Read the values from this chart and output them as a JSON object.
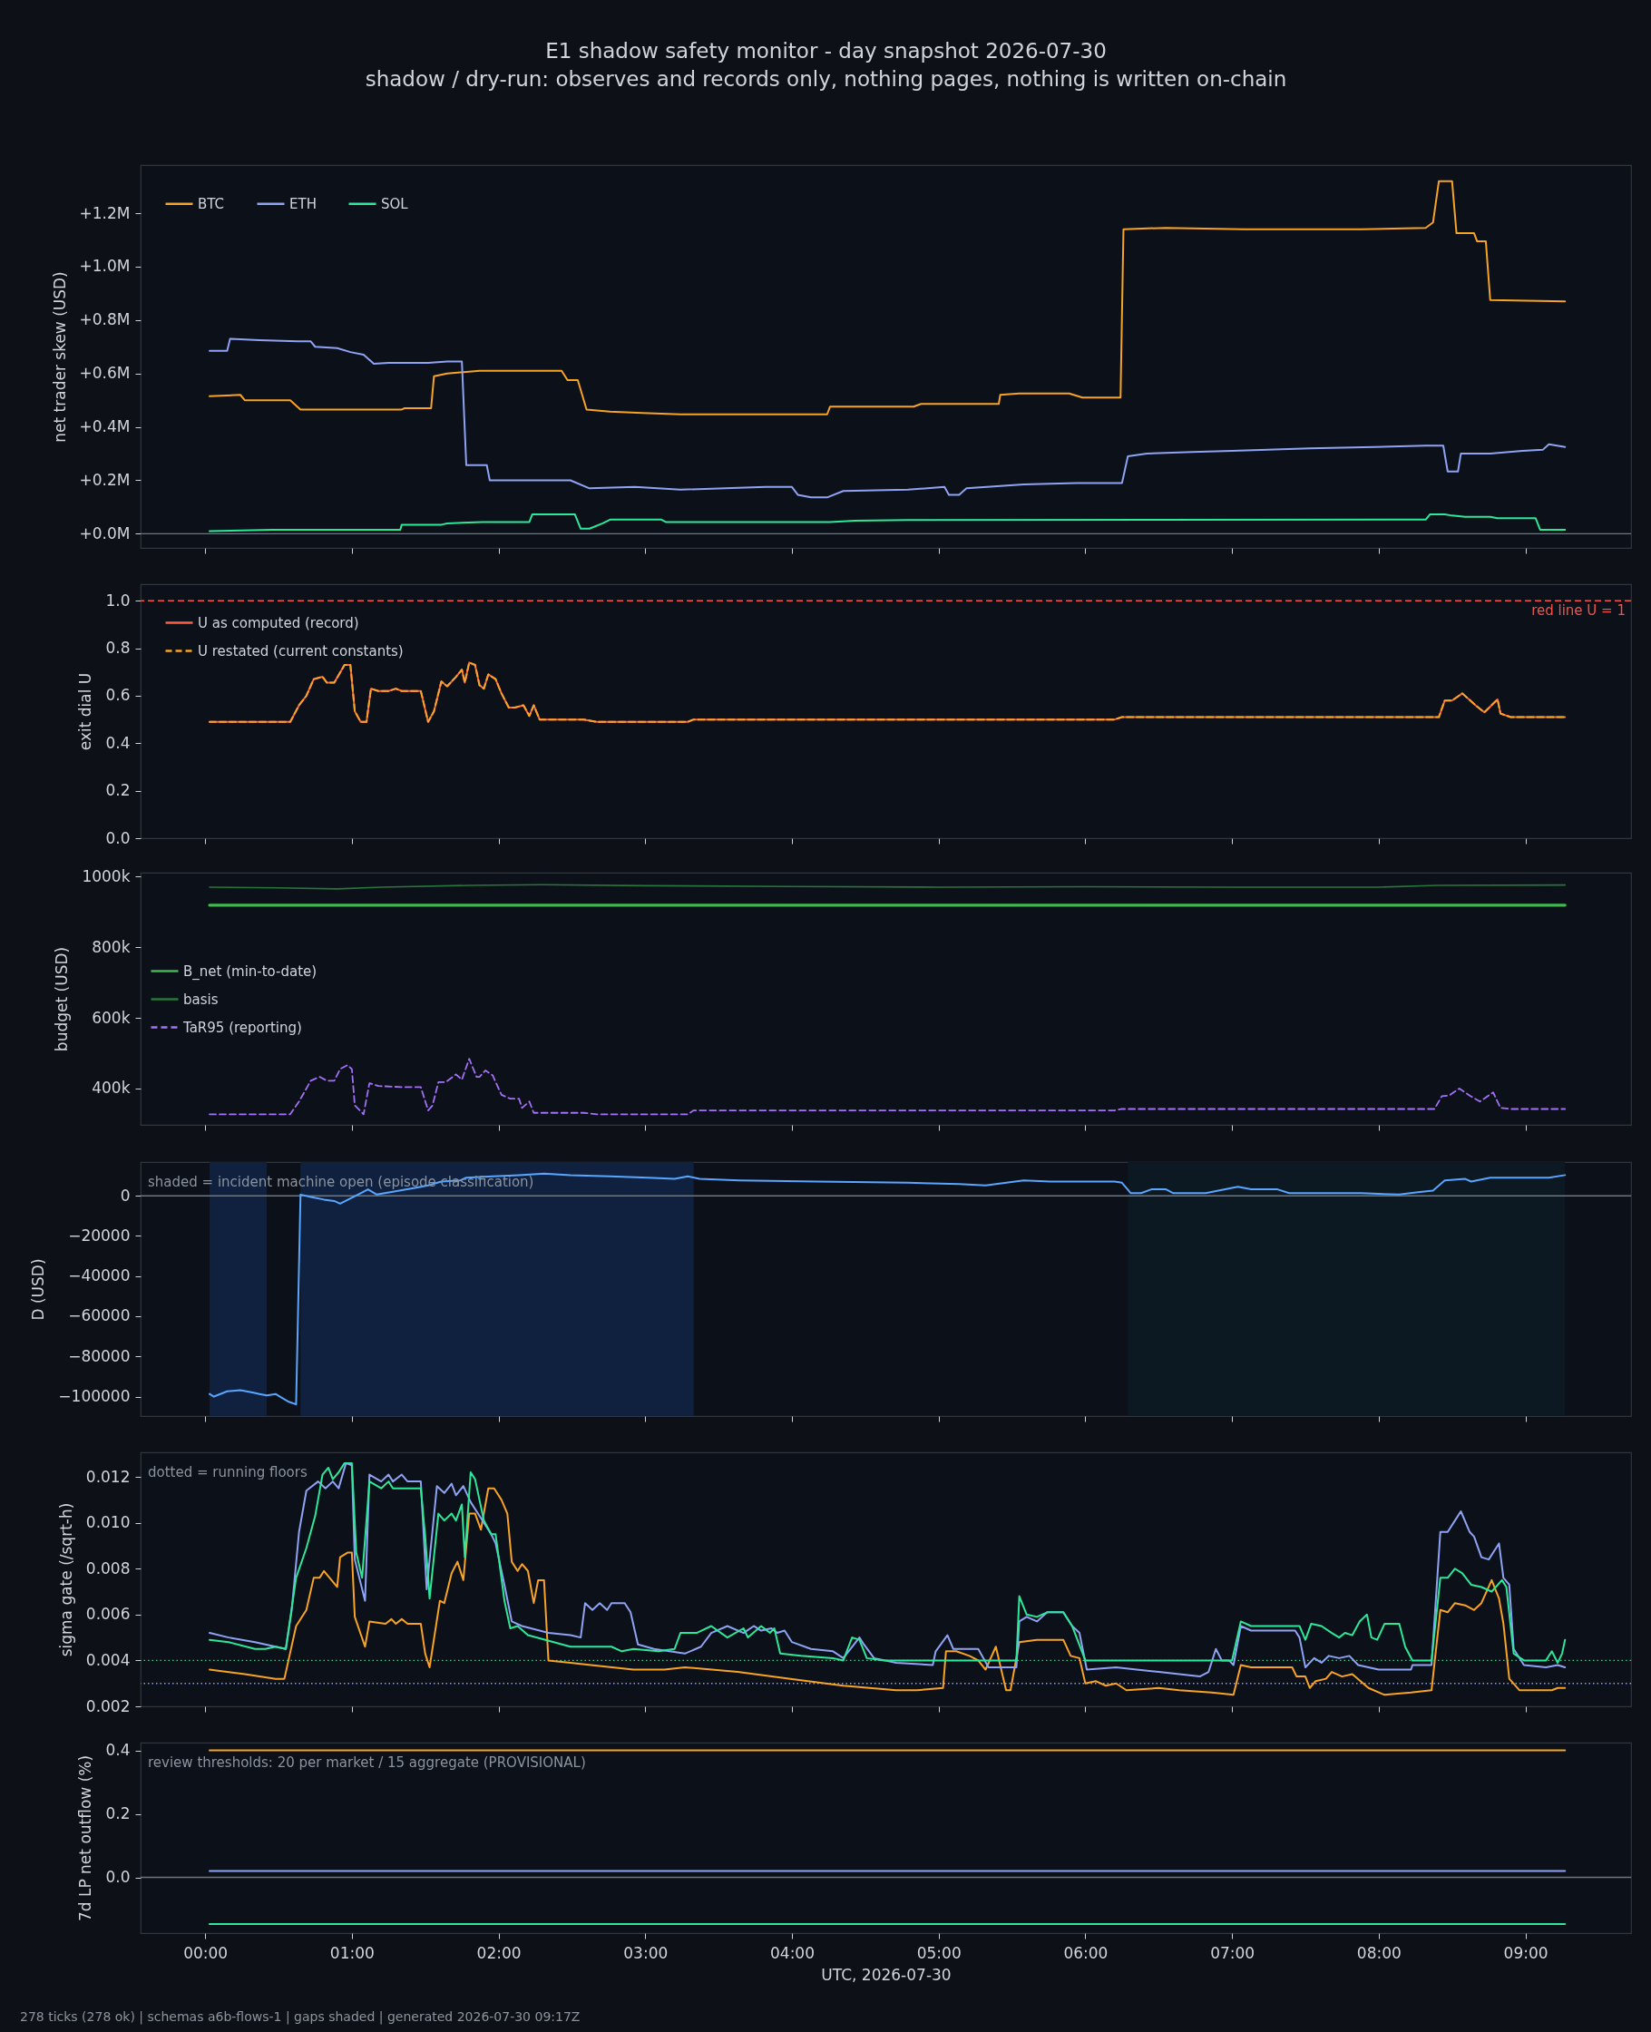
{
  "chart_data": [
    {
      "type": "line",
      "title": "E1 shadow safety monitor - day snapshot 2026-07-30",
      "subtitle": "shadow / dry-run: observes and records only, nothing pages, nothing is written on-chain",
      "ylabel": "net trader skew (USD)",
      "xlim": [
        -0.44,
        9.72
      ],
      "xticks": [
        {
          "value": 0,
          "label": null
        },
        {
          "value": 1,
          "label": null
        },
        {
          "value": 2,
          "label": null
        },
        {
          "value": 3,
          "label": null
        },
        {
          "value": 4,
          "label": null
        },
        {
          "value": 5,
          "label": null
        },
        {
          "value": 6,
          "label": null
        },
        {
          "value": 7,
          "label": null
        },
        {
          "value": 8,
          "label": null
        },
        {
          "value": 9,
          "label": null
        }
      ],
      "ylim": [
        -53000,
        1380000
      ],
      "yticks": [
        {
          "value": 0,
          "label": "+0.0M"
        },
        {
          "value": 200000,
          "label": "+0.2M"
        },
        {
          "value": 400000,
          "label": "+0.4M"
        },
        {
          "value": 600000,
          "label": "+0.6M"
        },
        {
          "value": 800000,
          "label": "+0.8M"
        },
        {
          "value": 1000000,
          "label": "+1.0M"
        },
        {
          "value": 1200000,
          "label": "+1.2M"
        }
      ],
      "legend": "top left",
      "tick_labels": "y",
      "ref_lines": [
        {
          "axis": "y",
          "value": 0,
          "color": "#6e7681"
        }
      ],
      "series": [
        {
          "name": "BTC",
          "color": "#f7a325",
          "x": [
            0.03,
            0.24,
            0.27,
            0.58,
            0.65,
            1.34,
            1.36,
            1.54,
            1.56,
            1.65,
            1.87,
            2.43,
            2.47,
            2.54,
            2.6,
            2.76,
            2.98,
            3.24,
            4.24,
            4.26,
            4.83,
            4.88,
            5.41,
            5.42,
            5.55,
            5.89,
            5.98,
            6.24,
            6.26,
            6.55,
            7.08,
            7.88,
            8.32,
            8.37,
            8.41,
            8.5,
            8.53,
            8.65,
            8.67,
            8.73,
            8.76,
            9.27
          ],
          "values": [
            515000,
            520000,
            500000,
            500000,
            465000,
            465000,
            470000,
            470000,
            590000,
            600000,
            610000,
            610000,
            575000,
            575000,
            465000,
            457000,
            452000,
            447000,
            447000,
            476000,
            476000,
            486000,
            486000,
            520000,
            525000,
            525000,
            510000,
            510000,
            1140000,
            1145000,
            1140000,
            1140000,
            1145000,
            1165000,
            1320000,
            1320000,
            1125000,
            1125000,
            1095000,
            1095000,
            875000,
            870000
          ]
        },
        {
          "name": "ETH",
          "color": "#8fa3f5",
          "x": [
            0.03,
            0.15,
            0.17,
            0.37,
            0.63,
            0.72,
            0.75,
            0.9,
            0.99,
            1.08,
            1.15,
            1.25,
            1.52,
            1.65,
            1.75,
            1.78,
            1.92,
            1.94,
            2.49,
            2.62,
            2.93,
            3.24,
            3.82,
            4.0,
            4.04,
            4.13,
            4.24,
            4.35,
            4.79,
            5.04,
            5.07,
            5.14,
            5.19,
            5.58,
            5.94,
            6.25,
            6.29,
            6.42,
            6.73,
            7.0,
            7.53,
            7.97,
            8.32,
            8.44,
            8.47,
            8.54,
            8.56,
            8.76,
            8.98,
            9.12,
            9.16,
            9.27
          ],
          "values": [
            685000,
            685000,
            730000,
            725000,
            720000,
            720000,
            700000,
            695000,
            680000,
            670000,
            636000,
            640000,
            640000,
            645000,
            645000,
            257000,
            257000,
            200000,
            200000,
            170000,
            175000,
            165000,
            175000,
            175000,
            146000,
            136000,
            136000,
            160000,
            165000,
            175000,
            146000,
            146000,
            170000,
            185000,
            190000,
            190000,
            290000,
            300000,
            306000,
            310000,
            320000,
            325000,
            330000,
            330000,
            233000,
            233000,
            300000,
            300000,
            310000,
            315000,
            335000,
            325000
          ]
        },
        {
          "name": "SOL",
          "color": "#2ee89a",
          "x": [
            0.03,
            0.46,
            1.33,
            1.34,
            1.61,
            1.65,
            1.89,
            2.21,
            2.23,
            2.52,
            2.56,
            2.62,
            2.71,
            2.76,
            3.11,
            3.14,
            4.26,
            4.43,
            4.79,
            8.32,
            8.35,
            8.45,
            8.5,
            8.59,
            8.76,
            8.81,
            9.07,
            9.1,
            9.27
          ],
          "values": [
            10000,
            15000,
            15000,
            34000,
            34000,
            39000,
            44000,
            44000,
            73000,
            73000,
            19000,
            19000,
            39000,
            53000,
            53000,
            44000,
            44000,
            49000,
            51000,
            53000,
            73000,
            73000,
            68000,
            63000,
            63000,
            58000,
            58000,
            15000,
            15000
          ]
        }
      ]
    },
    {
      "type": "line",
      "ylabel": "exit dial U",
      "xlim": [
        -0.44,
        9.72
      ],
      "xticks": [
        {
          "value": 0,
          "label": null
        },
        {
          "value": 1,
          "label": null
        },
        {
          "value": 2,
          "label": null
        },
        {
          "value": 3,
          "label": null
        },
        {
          "value": 4,
          "label": null
        },
        {
          "value": 5,
          "label": null
        },
        {
          "value": 6,
          "label": null
        },
        {
          "value": 7,
          "label": null
        },
        {
          "value": 8,
          "label": null
        },
        {
          "value": 9,
          "label": null
        }
      ],
      "ylim": [
        0,
        1.07
      ],
      "yticks": [
        {
          "value": 0,
          "label": "0.0"
        },
        0.2,
        0.4,
        0.6,
        0.8,
        {
          "value": 1,
          "label": "1.0"
        }
      ],
      "legend": "top left",
      "tick_labels": "y",
      "ref_lines": [
        {
          "axis": "y",
          "value": 1,
          "label": "red line U = 1",
          "color": "#f85149",
          "line_style": "dashed"
        }
      ],
      "series": [
        {
          "name": "U as computed (record)",
          "color": "#ff5f45",
          "x": [
            0.03,
            0.58,
            0.64,
            0.69,
            0.74,
            0.8,
            0.83,
            0.88,
            0.95,
            0.99,
            1.02,
            1.06,
            1.1,
            1.13,
            1.18,
            1.25,
            1.3,
            1.34,
            1.47,
            1.52,
            1.56,
            1.61,
            1.65,
            1.71,
            1.75,
            1.77,
            1.8,
            1.84,
            1.87,
            1.9,
            1.93,
            1.98,
            2.02,
            2.07,
            2.11,
            2.17,
            2.21,
            2.24,
            2.28,
            2.58,
            2.67,
            3.29,
            3.33,
            6.2,
            6.25,
            8.41,
            8.45,
            8.5,
            8.57,
            8.66,
            8.72,
            8.81,
            8.83,
            8.9,
            9.27
          ],
          "values": [
            0.49,
            0.49,
            0.56,
            0.6,
            0.67,
            0.68,
            0.655,
            0.655,
            0.73,
            0.73,
            0.535,
            0.49,
            0.49,
            0.63,
            0.62,
            0.62,
            0.63,
            0.62,
            0.62,
            0.49,
            0.535,
            0.66,
            0.64,
            0.68,
            0.71,
            0.655,
            0.74,
            0.73,
            0.645,
            0.63,
            0.69,
            0.67,
            0.61,
            0.55,
            0.55,
            0.56,
            0.515,
            0.56,
            0.5,
            0.5,
            0.49,
            0.49,
            0.5,
            0.5,
            0.51,
            0.51,
            0.58,
            0.58,
            0.61,
            0.56,
            0.53,
            0.585,
            0.525,
            0.51,
            0.51
          ]
        },
        {
          "name": "U restated (current constants)",
          "color": "#f5a524",
          "line_style": "dashed",
          "x": [
            0.03,
            0.58,
            0.64,
            0.69,
            0.74,
            0.8,
            0.83,
            0.88,
            0.95,
            0.99,
            1.02,
            1.06,
            1.1,
            1.13,
            1.18,
            1.25,
            1.3,
            1.34,
            1.47,
            1.52,
            1.56,
            1.61,
            1.65,
            1.71,
            1.75,
            1.77,
            1.8,
            1.84,
            1.87,
            1.9,
            1.93,
            1.98,
            2.02,
            2.07,
            2.11,
            2.17,
            2.21,
            2.24,
            2.28,
            2.58,
            2.67,
            3.29,
            3.33,
            6.2,
            6.25,
            8.41,
            8.45,
            8.5,
            8.57,
            8.66,
            8.72,
            8.81,
            8.83,
            8.9,
            9.27
          ],
          "values": [
            0.49,
            0.49,
            0.56,
            0.6,
            0.67,
            0.68,
            0.655,
            0.655,
            0.73,
            0.73,
            0.535,
            0.49,
            0.49,
            0.63,
            0.62,
            0.62,
            0.63,
            0.62,
            0.62,
            0.49,
            0.535,
            0.66,
            0.64,
            0.68,
            0.71,
            0.655,
            0.74,
            0.73,
            0.645,
            0.63,
            0.69,
            0.67,
            0.61,
            0.55,
            0.55,
            0.56,
            0.515,
            0.56,
            0.5,
            0.5,
            0.49,
            0.49,
            0.5,
            0.5,
            0.51,
            0.51,
            0.58,
            0.58,
            0.61,
            0.56,
            0.53,
            0.585,
            0.525,
            0.51,
            0.51
          ]
        }
      ]
    },
    {
      "type": "line",
      "ylabel": "budget (USD)",
      "xlim": [
        -0.44,
        9.72
      ],
      "xticks": [
        {
          "value": 0,
          "label": null
        },
        {
          "value": 1,
          "label": null
        },
        {
          "value": 2,
          "label": null
        },
        {
          "value": 3,
          "label": null
        },
        {
          "value": 4,
          "label": null
        },
        {
          "value": 5,
          "label": null
        },
        {
          "value": 6,
          "label": null
        },
        {
          "value": 7,
          "label": null
        },
        {
          "value": 8,
          "label": null
        },
        {
          "value": 9,
          "label": null
        }
      ],
      "ylim": [
        297000,
        1011000
      ],
      "yticks": [
        {
          "value": 400000,
          "label": "400k"
        },
        {
          "value": 600000,
          "label": "600k"
        },
        {
          "value": 800000,
          "label": "800k"
        },
        {
          "value": 1000000,
          "label": "1000k"
        }
      ],
      "legend": "left",
      "tick_labels": "y",
      "series": [
        {
          "name": "B_net (min-to-date)",
          "color": "#3fb950",
          "x": [
            0.03,
            9.27
          ],
          "values": [
            919000,
            919000
          ]
        },
        {
          "name": "basis",
          "color": "#27773b",
          "x": [
            0.03,
            0.5,
            0.9,
            1.2,
            1.8,
            2.3,
            3.0,
            4.0,
            5.0,
            6.0,
            7.0,
            8.0,
            8.4,
            9.27
          ],
          "values": [
            970000,
            968000,
            965000,
            970000,
            975000,
            977000,
            974000,
            972000,
            970000,
            971000,
            970000,
            970000,
            975000,
            976000
          ]
        },
        {
          "name": "TaR95 (reporting)",
          "color": "#a371f7",
          "line_style": "dashed",
          "x": [
            0.03,
            0.58,
            0.64,
            0.72,
            0.78,
            0.83,
            0.88,
            0.92,
            0.97,
            1.0,
            1.02,
            1.08,
            1.12,
            1.18,
            1.34,
            1.47,
            1.52,
            1.55,
            1.59,
            1.64,
            1.71,
            1.75,
            1.8,
            1.85,
            1.87,
            1.91,
            1.96,
            2.02,
            2.08,
            2.14,
            2.16,
            2.21,
            2.24,
            2.58,
            2.67,
            3.29,
            3.33,
            6.2,
            6.25,
            8.38,
            8.43,
            8.48,
            8.55,
            8.62,
            8.69,
            8.78,
            8.83,
            8.9,
            9.27
          ],
          "values": [
            327000,
            327000,
            363000,
            422000,
            433000,
            422000,
            422000,
            455000,
            466000,
            455000,
            352000,
            327000,
            415000,
            407000,
            404000,
            404000,
            338000,
            352000,
            418000,
            418000,
            440000,
            425000,
            484000,
            433000,
            433000,
            451000,
            437000,
            382000,
            371000,
            371000,
            345000,
            363000,
            331000,
            331000,
            327000,
            327000,
            338000,
            338000,
            342000,
            342000,
            378000,
            380000,
            400000,
            380000,
            363000,
            389000,
            345000,
            342000,
            342000
          ]
        }
      ]
    },
    {
      "type": "line",
      "ylabel": "D (USD)",
      "xlim": [
        -0.44,
        9.72
      ],
      "xticks": [
        {
          "value": 0,
          "label": null
        },
        {
          "value": 1,
          "label": null
        },
        {
          "value": 2,
          "label": null
        },
        {
          "value": 3,
          "label": null
        },
        {
          "value": 4,
          "label": null
        },
        {
          "value": 5,
          "label": null
        },
        {
          "value": 6,
          "label": null
        },
        {
          "value": 7,
          "label": null
        },
        {
          "value": 8,
          "label": null
        },
        {
          "value": 9,
          "label": null
        }
      ],
      "ylim": [
        -109700,
        16800
      ],
      "yticks": [
        {
          "value": -100000,
          "label": "−100000"
        },
        {
          "value": -80000,
          "label": "−80000"
        },
        {
          "value": -60000,
          "label": "−60000"
        },
        {
          "value": -40000,
          "label": "−40000"
        },
        {
          "value": -20000,
          "label": "−20000"
        },
        0
      ],
      "tick_labels": "y",
      "annotations": [
        "shaded = incident machine open (episode classification)"
      ],
      "bands": [
        {
          "axis": "x",
          "from": 0.03,
          "to": 0.42,
          "color": "#10213f"
        },
        {
          "axis": "x",
          "from": 0.65,
          "to": 3.33,
          "color": "#10213f"
        },
        {
          "axis": "x",
          "from": 6.29,
          "to": 9.27,
          "color": "#0c1922"
        }
      ],
      "ref_lines": [
        {
          "axis": "y",
          "value": 0,
          "color": "#6e7681"
        }
      ],
      "series": [
        {
          "color": "#58a6ff",
          "x": [
            0.03,
            0.06,
            0.15,
            0.24,
            0.33,
            0.37,
            0.42,
            0.48,
            0.51,
            0.57,
            0.62,
            0.65,
            0.72,
            0.81,
            0.88,
            0.92,
            0.99,
            1.06,
            1.11,
            1.17,
            1.27,
            1.43,
            1.52,
            1.61,
            1.74,
            1.78,
            1.96,
            2.14,
            2.31,
            2.49,
            2.76,
            3.02,
            3.2,
            3.29,
            3.37,
            3.64,
            4.17,
            4.79,
            5.14,
            5.32,
            5.58,
            5.76,
            6.2,
            6.25,
            6.31,
            6.38,
            6.45,
            6.55,
            6.6,
            6.82,
            7.04,
            7.13,
            7.31,
            7.39,
            7.88,
            8.14,
            8.28,
            8.37,
            8.45,
            8.59,
            8.63,
            8.76,
            9.16,
            9.27
          ],
          "values": [
            -98700,
            -100000,
            -97400,
            -96800,
            -98100,
            -98700,
            -99400,
            -98700,
            -100000,
            -102600,
            -103900,
            600,
            -600,
            -1900,
            -2600,
            -3900,
            -1300,
            1300,
            3200,
            600,
            1900,
            3900,
            5200,
            7100,
            7700,
            9000,
            9700,
            10300,
            11000,
            10300,
            9700,
            9000,
            8400,
            9700,
            8400,
            7700,
            7100,
            6500,
            5800,
            5200,
            7700,
            7100,
            7100,
            6500,
            1300,
            1300,
            3200,
            3200,
            1300,
            1300,
            4500,
            3200,
            3200,
            1300,
            1300,
            600,
            1900,
            2600,
            7700,
            8400,
            7100,
            9000,
            9000,
            10300
          ]
        }
      ]
    },
    {
      "type": "line",
      "ylabel": "sigma gate (/sqrt-h)",
      "xlim": [
        -0.44,
        9.72
      ],
      "xticks": [
        {
          "value": 0,
          "label": null
        },
        {
          "value": 1,
          "label": null
        },
        {
          "value": 2,
          "label": null
        },
        {
          "value": 3,
          "label": null
        },
        {
          "value": 4,
          "label": null
        },
        {
          "value": 5,
          "label": null
        },
        {
          "value": 6,
          "label": null
        },
        {
          "value": 7,
          "label": null
        },
        {
          "value": 8,
          "label": null
        },
        {
          "value": 9,
          "label": null
        }
      ],
      "ylim": [
        0.002,
        0.01307
      ],
      "yticks": [
        0.002,
        0.004,
        0.006,
        0.008,
        {
          "value": 0.01,
          "label": "0.010"
        },
        0.012
      ],
      "tick_labels": "y",
      "annotations": [
        "dotted = running floors"
      ],
      "ref_lines": [
        {
          "axis": "y",
          "value": 0.004,
          "color": "#3ecf8e",
          "line_style": "dotted"
        },
        {
          "axis": "y",
          "value": 0.003,
          "color": "#8c9eff",
          "line_style": "dotted"
        }
      ],
      "series": [
        {
          "color": "#f7a325",
          "x": [
            0.03,
            0.27,
            0.48,
            0.54,
            0.62,
            0.69,
            0.74,
            0.78,
            0.81,
            0.9,
            0.92,
            0.97,
            1.0,
            1.02,
            1.09,
            1.12,
            1.23,
            1.27,
            1.3,
            1.34,
            1.38,
            1.47,
            1.5,
            1.53,
            1.6,
            1.63,
            1.68,
            1.72,
            1.76,
            1.8,
            1.84,
            1.88,
            1.93,
            1.97,
            2.02,
            2.06,
            2.09,
            2.13,
            2.16,
            2.2,
            2.24,
            2.27,
            2.31,
            2.34,
            2.49,
            2.63,
            2.92,
            3.13,
            3.27,
            3.63,
            3.99,
            4.35,
            4.71,
            4.85,
            5.03,
            5.05,
            5.12,
            5.21,
            5.27,
            5.32,
            5.39,
            5.46,
            5.49,
            5.55,
            5.67,
            5.85,
            5.9,
            5.96,
            6.0,
            6.07,
            6.14,
            6.21,
            6.28,
            6.5,
            6.64,
            6.86,
            7.01,
            7.06,
            7.13,
            7.41,
            7.44,
            7.5,
            7.53,
            7.57,
            7.64,
            7.68,
            7.75,
            7.82,
            7.93,
            8.04,
            8.22,
            8.36,
            8.42,
            8.47,
            8.52,
            8.59,
            8.65,
            8.7,
            8.77,
            8.82,
            8.85,
            8.89,
            8.96,
            9.08,
            9.18,
            9.22,
            9.27
          ],
          "values": [
            0.0036,
            0.0034,
            0.0032,
            0.0032,
            0.0055,
            0.0062,
            0.0076,
            0.0076,
            0.0079,
            0.0072,
            0.0085,
            0.0087,
            0.0087,
            0.0059,
            0.0046,
            0.0057,
            0.0056,
            0.0058,
            0.0056,
            0.0058,
            0.0056,
            0.0056,
            0.0043,
            0.0037,
            0.0066,
            0.0065,
            0.0078,
            0.0083,
            0.0075,
            0.0104,
            0.0104,
            0.0097,
            0.0115,
            0.0115,
            0.011,
            0.0104,
            0.0083,
            0.0079,
            0.0082,
            0.0079,
            0.0065,
            0.0075,
            0.0075,
            0.004,
            0.0039,
            0.0038,
            0.0036,
            0.0036,
            0.0037,
            0.0035,
            0.0032,
            0.0029,
            0.0027,
            0.0027,
            0.0028,
            0.0044,
            0.0044,
            0.0042,
            0.004,
            0.0036,
            0.0046,
            0.0027,
            0.0027,
            0.0048,
            0.0049,
            0.0049,
            0.0042,
            0.0041,
            0.003,
            0.0031,
            0.0029,
            0.003,
            0.0027,
            0.0028,
            0.0027,
            0.0026,
            0.0025,
            0.0038,
            0.0037,
            0.0037,
            0.0033,
            0.0033,
            0.0028,
            0.0031,
            0.0032,
            0.0035,
            0.0033,
            0.0034,
            0.0028,
            0.0025,
            0.0026,
            0.0027,
            0.0062,
            0.0061,
            0.0065,
            0.0064,
            0.0062,
            0.0065,
            0.0075,
            0.0067,
            0.0056,
            0.0032,
            0.0027,
            0.0027,
            0.0027,
            0.0028,
            0.0028
          ]
        },
        {
          "color": "#8fa3f5",
          "x": [
            0.03,
            0.16,
            0.34,
            0.48,
            0.55,
            0.59,
            0.64,
            0.69,
            0.77,
            0.82,
            0.87,
            0.91,
            0.96,
            1.0,
            1.02,
            1.09,
            1.12,
            1.2,
            1.25,
            1.28,
            1.34,
            1.38,
            1.47,
            1.51,
            1.58,
            1.63,
            1.68,
            1.71,
            1.76,
            1.81,
            1.86,
            1.95,
            1.98,
            2.04,
            2.09,
            2.16,
            2.34,
            2.49,
            2.56,
            2.59,
            2.64,
            2.69,
            2.74,
            2.77,
            2.86,
            2.9,
            2.95,
            3.06,
            3.27,
            3.38,
            3.45,
            3.56,
            3.67,
            3.74,
            3.79,
            3.86,
            3.9,
            3.95,
            4.0,
            4.13,
            4.28,
            4.35,
            4.46,
            4.49,
            4.56,
            4.71,
            4.96,
            4.98,
            5.06,
            5.1,
            5.27,
            5.34,
            5.53,
            5.55,
            5.6,
            5.67,
            5.74,
            5.85,
            5.91,
            5.96,
            6.01,
            6.21,
            6.35,
            6.5,
            6.78,
            6.84,
            6.89,
            6.93,
            6.98,
            7.01,
            7.06,
            7.13,
            7.43,
            7.46,
            7.5,
            7.56,
            7.61,
            7.66,
            7.73,
            7.8,
            7.86,
            8.0,
            8.22,
            8.23,
            8.36,
            8.42,
            8.47,
            8.52,
            8.56,
            8.62,
            8.65,
            8.7,
            8.75,
            8.8,
            8.82,
            8.85,
            8.89,
            8.92,
            8.99,
            9.14,
            9.22,
            9.27
          ],
          "values": [
            0.0052,
            0.005,
            0.0048,
            0.0046,
            0.0045,
            0.0062,
            0.0096,
            0.0114,
            0.0118,
            0.0115,
            0.0118,
            0.0115,
            0.0126,
            0.0125,
            0.0084,
            0.0066,
            0.0121,
            0.0118,
            0.0121,
            0.0118,
            0.0121,
            0.0118,
            0.0118,
            0.0071,
            0.0116,
            0.0113,
            0.0117,
            0.0112,
            0.0116,
            0.0109,
            0.0104,
            0.0095,
            0.0091,
            0.0073,
            0.0057,
            0.0055,
            0.0052,
            0.0051,
            0.005,
            0.0065,
            0.0062,
            0.0065,
            0.0062,
            0.0065,
            0.0065,
            0.0061,
            0.0047,
            0.0045,
            0.0043,
            0.0046,
            0.0052,
            0.0055,
            0.0052,
            0.0055,
            0.0053,
            0.0054,
            0.0052,
            0.0053,
            0.0048,
            0.0045,
            0.0044,
            0.0041,
            0.005,
            0.0047,
            0.0041,
            0.0039,
            0.0038,
            0.0044,
            0.0051,
            0.0045,
            0.0045,
            0.0037,
            0.0037,
            0.0057,
            0.0059,
            0.0057,
            0.0061,
            0.0061,
            0.0055,
            0.0052,
            0.0036,
            0.0037,
            0.0036,
            0.0035,
            0.0033,
            0.0035,
            0.0045,
            0.004,
            0.004,
            0.0038,
            0.0055,
            0.0053,
            0.0053,
            0.005,
            0.0037,
            0.0041,
            0.0039,
            0.0042,
            0.0041,
            0.0042,
            0.0038,
            0.0036,
            0.0036,
            0.0038,
            0.0038,
            0.0096,
            0.0096,
            0.0101,
            0.0105,
            0.0096,
            0.0094,
            0.0085,
            0.0084,
            0.0089,
            0.0091,
            0.0076,
            0.0073,
            0.0045,
            0.0038,
            0.0037,
            0.0038,
            0.0037
          ]
        },
        {
          "color": "#2ee89a",
          "x": [
            0.03,
            0.16,
            0.34,
            0.41,
            0.48,
            0.55,
            0.62,
            0.69,
            0.75,
            0.8,
            0.84,
            0.87,
            0.91,
            0.95,
            1.0,
            1.03,
            1.07,
            1.12,
            1.2,
            1.25,
            1.28,
            1.47,
            1.5,
            1.53,
            1.59,
            1.63,
            1.68,
            1.71,
            1.75,
            1.77,
            1.81,
            1.84,
            1.9,
            1.95,
            1.98,
            2.04,
            2.08,
            2.13,
            2.2,
            2.49,
            2.77,
            2.84,
            2.92,
            3.09,
            3.2,
            3.24,
            3.35,
            3.45,
            3.56,
            3.67,
            3.7,
            3.79,
            3.85,
            3.88,
            3.92,
            4.06,
            4.28,
            4.35,
            4.41,
            4.46,
            4.51,
            4.63,
            5.53,
            5.55,
            5.6,
            5.67,
            5.74,
            5.85,
            5.91,
            6.0,
            7.0,
            7.06,
            7.13,
            7.46,
            7.5,
            7.54,
            7.61,
            7.68,
            7.73,
            7.77,
            7.82,
            7.87,
            7.92,
            7.95,
            7.99,
            8.04,
            8.14,
            8.18,
            8.23,
            8.36,
            8.42,
            8.47,
            8.52,
            8.57,
            8.63,
            8.7,
            8.77,
            8.84,
            8.87,
            8.92,
            8.99,
            9.14,
            9.18,
            9.22,
            9.25,
            9.27
          ],
          "values": [
            0.0049,
            0.0048,
            0.0045,
            0.0045,
            0.0046,
            0.0045,
            0.0076,
            0.0089,
            0.0103,
            0.0121,
            0.0124,
            0.0119,
            0.0122,
            0.0126,
            0.0126,
            0.0087,
            0.0076,
            0.0118,
            0.0115,
            0.0118,
            0.0115,
            0.0115,
            0.0094,
            0.0067,
            0.0104,
            0.0101,
            0.0104,
            0.0101,
            0.0108,
            0.0085,
            0.0122,
            0.0119,
            0.0101,
            0.0095,
            0.0095,
            0.0066,
            0.0054,
            0.0055,
            0.0051,
            0.0046,
            0.0046,
            0.0044,
            0.0045,
            0.0044,
            0.0045,
            0.0052,
            0.0052,
            0.0055,
            0.005,
            0.0054,
            0.005,
            0.0055,
            0.0052,
            0.0054,
            0.0043,
            0.0042,
            0.0041,
            0.004,
            0.005,
            0.0049,
            0.0041,
            0.004,
            0.004,
            0.0068,
            0.006,
            0.0059,
            0.0061,
            0.0061,
            0.0055,
            0.004,
            0.004,
            0.0057,
            0.0055,
            0.0055,
            0.0049,
            0.0056,
            0.0055,
            0.0052,
            0.005,
            0.0052,
            0.0051,
            0.0057,
            0.006,
            0.005,
            0.0049,
            0.0056,
            0.0056,
            0.0046,
            0.004,
            0.004,
            0.0076,
            0.0076,
            0.008,
            0.0078,
            0.0073,
            0.0072,
            0.007,
            0.0075,
            0.0072,
            0.0043,
            0.004,
            0.004,
            0.0044,
            0.0039,
            0.0043,
            0.0049
          ]
        }
      ]
    },
    {
      "type": "line",
      "ylabel": "7d LP net outflow (%)",
      "xlabel": "UTC, 2026-07-30",
      "xlim": [
        -0.44,
        9.72
      ],
      "xticks": [
        {
          "value": 0,
          "label": "00:00"
        },
        {
          "value": 1,
          "label": "01:00"
        },
        {
          "value": 2,
          "label": "02:00"
        },
        {
          "value": 3,
          "label": "03:00"
        },
        {
          "value": 4,
          "label": "04:00"
        },
        {
          "value": 5,
          "label": "05:00"
        },
        {
          "value": 6,
          "label": "06:00"
        },
        {
          "value": 7,
          "label": "07:00"
        },
        {
          "value": 8,
          "label": "08:00"
        },
        {
          "value": 9,
          "label": "09:00"
        }
      ],
      "ylim": [
        -0.1755,
        0.4245
      ],
      "yticks": [
        {
          "value": 0,
          "label": "0.0"
        },
        0.2,
        0.4
      ],
      "annotations": [
        "review thresholds: 20 per market / 15 aggregate (PROVISIONAL)",
        "278 ticks (278 ok) | schemas a6b-flows-1 | gaps shaded | generated 2026-07-30 09:17Z"
      ],
      "ref_lines": [
        {
          "axis": "y",
          "value": 0,
          "color": "#6e7681"
        }
      ],
      "series": [
        {
          "color": "#f7a325",
          "x": [
            0.03,
            9.27
          ],
          "values": [
            0.4,
            0.4
          ]
        },
        {
          "color": "#8fa3f5",
          "x": [
            0.03,
            9.27
          ],
          "values": [
            0.02,
            0.02
          ]
        },
        {
          "color": "#2ee89a",
          "x": [
            0.03,
            9.27
          ],
          "values": [
            -0.147,
            -0.147
          ]
        }
      ]
    }
  ]
}
